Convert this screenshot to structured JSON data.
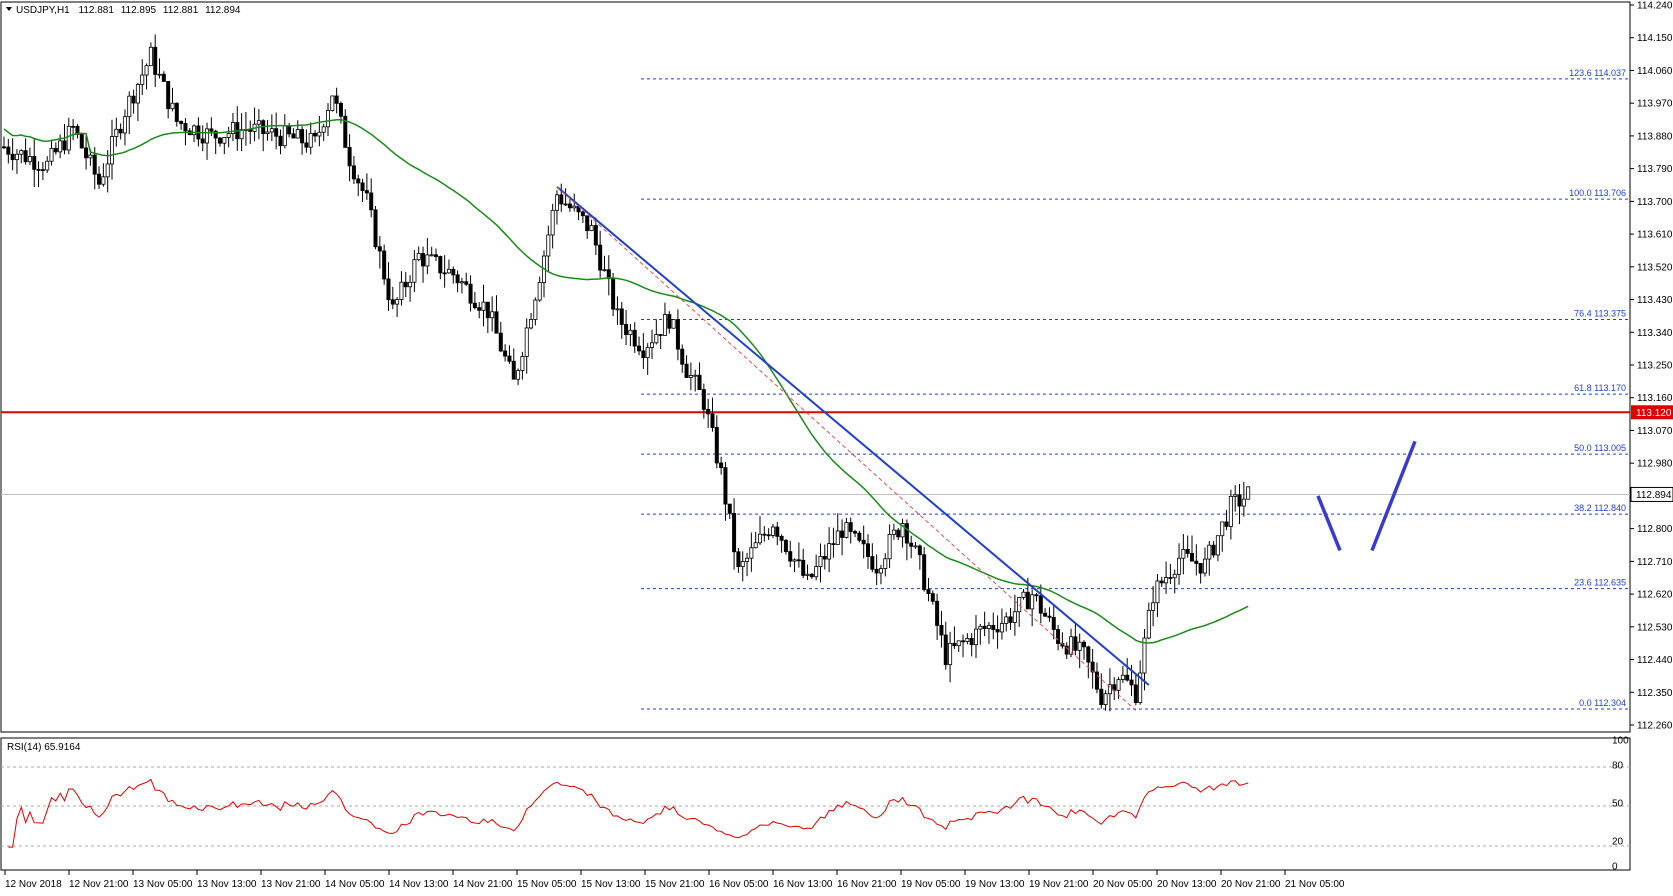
{
  "chart_data": {
    "type": "candlestick",
    "title": "USDJPY,H1",
    "ohlc": {
      "open": "112.881",
      "high": "112.895",
      "low": "112.881",
      "close": "112.894"
    },
    "y_range": [
      112.26,
      114.24
    ],
    "y_ticks": [
      "114.240",
      "114.150",
      "114.060",
      "113.970",
      "113.880",
      "113.790",
      "113.700",
      "113.610",
      "113.520",
      "113.430",
      "113.340",
      "113.250",
      "113.160",
      "113.070",
      "112.980",
      "112.890",
      "112.800",
      "112.710",
      "112.620",
      "112.530",
      "112.440",
      "112.350",
      "112.260"
    ],
    "x_ticks": [
      "12 Nov 2018",
      "12 Nov 21:00",
      "13 Nov 05:00",
      "13 Nov 13:00",
      "13 Nov 21:00",
      "14 Nov 05:00",
      "14 Nov 13:00",
      "14 Nov 21:00",
      "15 Nov 05:00",
      "15 Nov 13:00",
      "15 Nov 21:00",
      "16 Nov 05:00",
      "16 Nov 13:00",
      "16 Nov 21:00",
      "19 Nov 05:00",
      "19 Nov 13:00",
      "19 Nov 21:00",
      "20 Nov 05:00",
      "20 Nov 13:00",
      "20 Nov 21:00",
      "21 Nov 05:00"
    ],
    "current_price": 112.894,
    "current_price_label": "112.894",
    "resistance": {
      "value": 113.12,
      "label": "113.120",
      "color": "#e00000"
    },
    "fib_levels": [
      {
        "ratio": "123.6",
        "value": 114.037,
        "label": "114.037"
      },
      {
        "ratio": "100.0",
        "value": 113.706,
        "label": "113.706"
      },
      {
        "ratio": "76.4",
        "value": 113.375,
        "label": "113.375"
      },
      {
        "ratio": "61.8",
        "value": 113.17,
        "label": "113.170"
      },
      {
        "ratio": "50.0",
        "value": 113.005,
        "label": "113.005"
      },
      {
        "ratio": "38.2",
        "value": 112.84,
        "label": "112.840"
      },
      {
        "ratio": "23.6",
        "value": 112.635,
        "label": "112.635"
      },
      {
        "ratio": "0.0",
        "value": 112.304,
        "label": "112.304"
      }
    ],
    "colors": {
      "ma": "#1a8a1a",
      "trendline": "#1f3fd0",
      "fib": "#1f3fd0",
      "rsi": "#e00000",
      "projection": "#3a3ad0"
    },
    "rsi": {
      "label": "RSI(14) 65.9164",
      "ticks": [
        "100",
        "80",
        "50",
        "20",
        "0"
      ],
      "levels": [
        80,
        50,
        20
      ],
      "current": 65.9164
    }
  }
}
